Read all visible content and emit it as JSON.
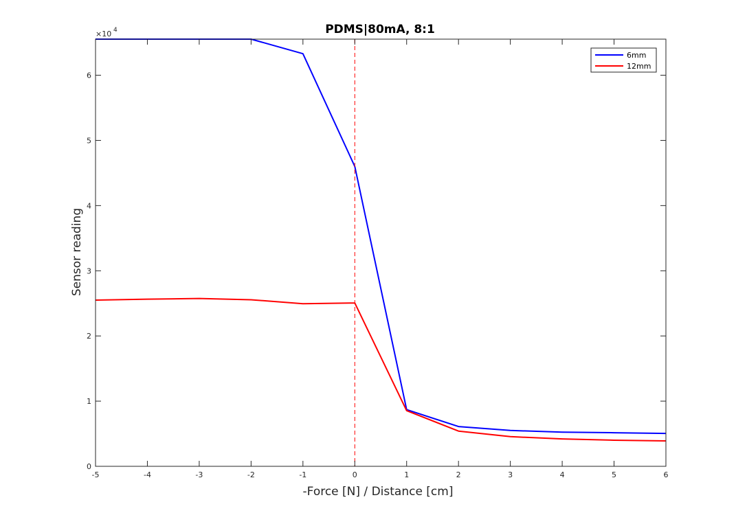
{
  "chart_data": {
    "type": "line",
    "title": "PDMS|80mA, 8:1",
    "xlabel": "-Force [N] / Distance [cm]",
    "ylabel": "Sensor reading",
    "y_exponent_label": "×10",
    "y_exponent_power": "4",
    "xlim": [
      -5,
      6
    ],
    "ylim": [
      0,
      65535
    ],
    "x_ticks": [
      -5,
      -4,
      -3,
      -2,
      -1,
      0,
      1,
      2,
      3,
      4,
      5,
      6
    ],
    "y_ticks": [
      0,
      10000,
      20000,
      30000,
      40000,
      50000,
      60000
    ],
    "x_tick_labels": [
      "-5",
      "-4",
      "-3",
      "-2",
      "-1",
      "0",
      "1",
      "2",
      "3",
      "4",
      "5",
      "6"
    ],
    "y_tick_labels": [
      "0",
      "1",
      "2",
      "3",
      "4",
      "5",
      "6"
    ],
    "x": [
      -5,
      -4,
      -3,
      -2,
      -1,
      0,
      1,
      2,
      3,
      4,
      5,
      6
    ],
    "series": [
      {
        "name": "6mm",
        "color": "#0000ff",
        "values": [
          65535,
          65535,
          65535,
          65535,
          63300,
          46000,
          8700,
          6100,
          5500,
          5250,
          5150,
          5050
        ]
      },
      {
        "name": "12mm",
        "color": "#ff0000",
        "values": [
          25500,
          25650,
          25750,
          25550,
          24950,
          25050,
          8550,
          5400,
          4550,
          4200,
          4000,
          3900
        ]
      }
    ],
    "reference_line": {
      "x": 0,
      "color": "#ff0000",
      "style": "dashed"
    },
    "grid": false,
    "legend_position": "top-right"
  }
}
